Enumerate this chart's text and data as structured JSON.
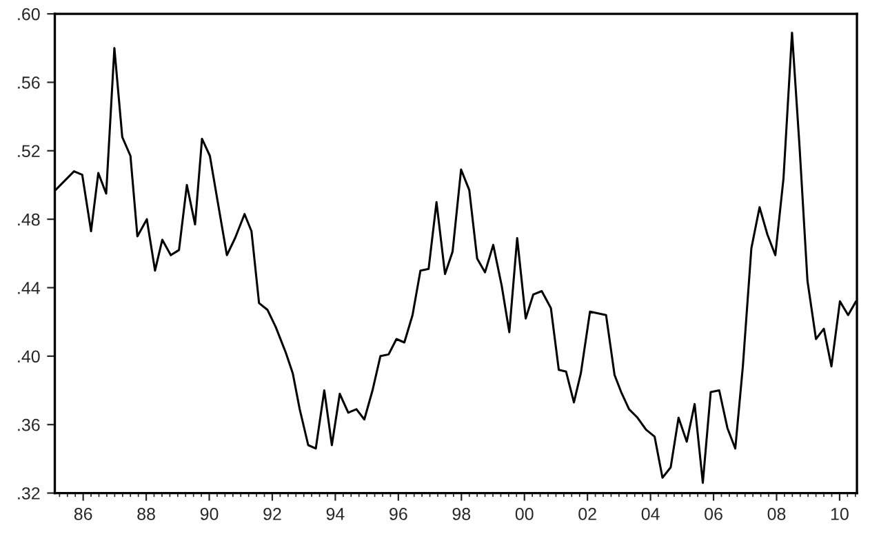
{
  "chart_data": {
    "type": "line",
    "x": [
      1985.12,
      1985.71,
      1985.97,
      1986.25,
      1986.48,
      1986.73,
      1986.99,
      1987.24,
      1987.5,
      1987.72,
      1988.02,
      1988.28,
      1988.51,
      1988.78,
      1989.04,
      1989.29,
      1989.55,
      1989.77,
      1990.02,
      1990.27,
      1990.56,
      1990.82,
      1991.12,
      1991.34,
      1991.58,
      1991.85,
      1992.11,
      1992.43,
      1992.65,
      1992.87,
      1993.14,
      1993.38,
      1993.65,
      1993.89,
      1994.14,
      1994.41,
      1994.67,
      1994.92,
      1995.18,
      1995.43,
      1995.69,
      1995.94,
      1996.19,
      1996.45,
      1996.7,
      1996.96,
      1997.21,
      1997.48,
      1997.72,
      1997.99,
      1998.25,
      1998.5,
      1998.75,
      1999.01,
      1999.28,
      1999.52,
      1999.77,
      2000.04,
      2000.28,
      2000.55,
      2000.84,
      2001.09,
      2001.32,
      2001.57,
      2001.79,
      2002.08,
      2002.59,
      2002.86,
      2003.07,
      2003.32,
      2003.59,
      2003.86,
      2004.13,
      2004.38,
      2004.64,
      2004.89,
      2005.15,
      2005.4,
      2005.66,
      2005.91,
      2006.18,
      2006.44,
      2006.69,
      2006.93,
      2007.2,
      2007.46,
      2007.71,
      2007.96,
      2008.22,
      2008.49,
      2008.73,
      2008.98,
      2009.25,
      2009.5,
      2009.74,
      2010.01,
      2010.27,
      2010.52
    ],
    "series": [
      {
        "color": "#000000",
        "values": [
          0.497,
          0.508,
          0.506,
          0.473,
          0.507,
          0.495,
          0.58,
          0.528,
          0.517,
          0.47,
          0.48,
          0.45,
          0.468,
          0.459,
          0.462,
          0.5,
          0.477,
          0.527,
          0.517,
          0.49,
          0.459,
          0.469,
          0.483,
          0.473,
          0.431,
          0.427,
          0.417,
          0.402,
          0.39,
          0.369,
          0.348,
          0.346,
          0.38,
          0.348,
          0.378,
          0.367,
          0.369,
          0.363,
          0.38,
          0.4,
          0.401,
          0.41,
          0.408,
          0.424,
          0.45,
          0.451,
          0.49,
          0.448,
          0.461,
          0.509,
          0.497,
          0.457,
          0.449,
          0.465,
          0.441,
          0.414,
          0.469,
          0.422,
          0.436,
          0.438,
          0.428,
          0.392,
          0.391,
          0.373,
          0.39,
          0.426,
          0.424,
          0.389,
          0.379,
          0.369,
          0.364,
          0.357,
          0.353,
          0.329,
          0.335,
          0.364,
          0.35,
          0.372,
          0.326,
          0.379,
          0.38,
          0.358,
          0.346,
          0.394,
          0.463,
          0.487,
          0.471,
          0.459,
          0.504,
          0.589,
          0.522,
          0.444,
          0.41,
          0.416,
          0.394,
          0.432,
          0.424,
          0.432
        ]
      }
    ],
    "xlim": [
      1985.1,
      2010.55
    ],
    "xticks": [
      {
        "value": 1986,
        "label": "86"
      },
      {
        "value": 1988,
        "label": "88"
      },
      {
        "value": 1990,
        "label": "90"
      },
      {
        "value": 1992,
        "label": "92"
      },
      {
        "value": 1994,
        "label": "94"
      },
      {
        "value": 1996,
        "label": "96"
      },
      {
        "value": 1998,
        "label": "98"
      },
      {
        "value": 2000,
        "label": "00"
      },
      {
        "value": 2002,
        "label": "02"
      },
      {
        "value": 2004,
        "label": "04"
      },
      {
        "value": 2006,
        "label": "06"
      },
      {
        "value": 2008,
        "label": "08"
      },
      {
        "value": 2010,
        "label": "10"
      }
    ],
    "ylim": [
      0.32,
      0.6
    ],
    "yticks": [
      {
        "value": 0.32,
        "label": ".32"
      },
      {
        "value": 0.36,
        "label": ".36"
      },
      {
        "value": 0.4,
        "label": ".40"
      },
      {
        "value": 0.44,
        "label": ".44"
      },
      {
        "value": 0.48,
        "label": ".48"
      },
      {
        "value": 0.52,
        "label": ".52"
      },
      {
        "value": 0.56,
        "label": ".56"
      },
      {
        "value": 0.6,
        "label": ".60"
      }
    ],
    "grid": false,
    "marker": "none",
    "line_style": "solid"
  }
}
